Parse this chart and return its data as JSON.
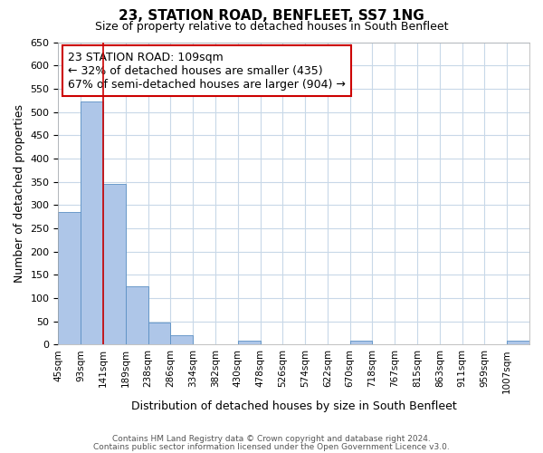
{
  "title": "23, STATION ROAD, BENFLEET, SS7 1NG",
  "subtitle": "Size of property relative to detached houses in South Benfleet",
  "xlabel": "Distribution of detached houses by size in South Benfleet",
  "ylabel": "Number of detached properties",
  "bin_labels": [
    "45sqm",
    "93sqm",
    "141sqm",
    "189sqm",
    "238sqm",
    "286sqm",
    "334sqm",
    "382sqm",
    "430sqm",
    "478sqm",
    "526sqm",
    "574sqm",
    "622sqm",
    "670sqm",
    "718sqm",
    "767sqm",
    "815sqm",
    "863sqm",
    "911sqm",
    "959sqm",
    "1007sqm"
  ],
  "bar_values": [
    285,
    523,
    345,
    125,
    48,
    20,
    0,
    0,
    8,
    0,
    0,
    0,
    0,
    8,
    0,
    0,
    0,
    0,
    0,
    0,
    8
  ],
  "bar_color": "#aec6e8",
  "bar_edge_color": "#5a8fc4",
  "ylim": [
    0,
    650
  ],
  "yticks": [
    0,
    50,
    100,
    150,
    200,
    250,
    300,
    350,
    400,
    450,
    500,
    550,
    600,
    650
  ],
  "vline_x": 2.0,
  "vline_color": "#cc0000",
  "annotation_text": "23 STATION ROAD: 109sqm\n← 32% of detached houses are smaller (435)\n67% of semi-detached houses are larger (904) →",
  "annotation_box_color": "#ffffff",
  "annotation_box_edge_color": "#cc0000",
  "footer_line1": "Contains HM Land Registry data © Crown copyright and database right 2024.",
  "footer_line2": "Contains public sector information licensed under the Open Government Licence v3.0.",
  "background_color": "#ffffff",
  "grid_color": "#c8d8e8",
  "title_fontsize": 11,
  "subtitle_fontsize": 9,
  "ylabel_fontsize": 9,
  "xlabel_fontsize": 9
}
